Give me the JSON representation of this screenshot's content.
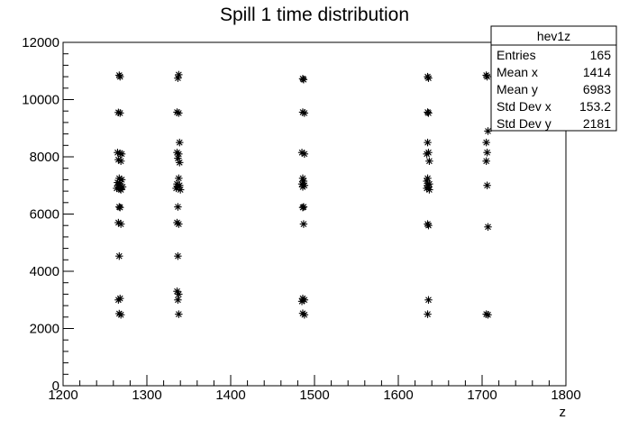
{
  "chart_data": {
    "type": "scatter",
    "title": "Spill 1 time distribution",
    "xlabel": "z",
    "ylabel": "",
    "xlim": [
      1200,
      1800
    ],
    "ylim": [
      0,
      12000
    ],
    "xticks": [
      "1200",
      "1300",
      "1400",
      "1500",
      "1600",
      "1700",
      "1800"
    ],
    "yticks": [
      "0",
      "2000",
      "4000",
      "6000",
      "8000",
      "10000",
      "12000"
    ],
    "marker": "asterisk",
    "stats": {
      "name": "hev1z",
      "rows": [
        {
          "label": "Entries",
          "value": "165"
        },
        {
          "label": "Mean x",
          "value": "1414"
        },
        {
          "label": "Mean y",
          "value": "6983"
        },
        {
          "label": "Std Dev x",
          "value": "153.2"
        },
        {
          "label": "Std Dev y",
          "value": "2181"
        }
      ]
    },
    "points": [
      [
        1267,
        10850
      ],
      [
        1268,
        10800
      ],
      [
        1266,
        9550
      ],
      [
        1268,
        9530
      ],
      [
        1265,
        8150
      ],
      [
        1268,
        8120
      ],
      [
        1270,
        8100
      ],
      [
        1266,
        7900
      ],
      [
        1269,
        7850
      ],
      [
        1267,
        7250
      ],
      [
        1270,
        7200
      ],
      [
        1265,
        7100
      ],
      [
        1268,
        7050
      ],
      [
        1266,
        7000
      ],
      [
        1271,
        6950
      ],
      [
        1264,
        6900
      ],
      [
        1268,
        6880
      ],
      [
        1269,
        6850
      ],
      [
        1267,
        6250
      ],
      [
        1268,
        6230
      ],
      [
        1266,
        5700
      ],
      [
        1269,
        5650
      ],
      [
        1267,
        4530
      ],
      [
        1268,
        3050
      ],
      [
        1266,
        3000
      ],
      [
        1267,
        2520
      ],
      [
        1269,
        2480
      ],
      [
        1338,
        10870
      ],
      [
        1337,
        10750
      ],
      [
        1336,
        9560
      ],
      [
        1338,
        9530
      ],
      [
        1339,
        8500
      ],
      [
        1336,
        8150
      ],
      [
        1338,
        8100
      ],
      [
        1337,
        7950
      ],
      [
        1339,
        7800
      ],
      [
        1338,
        7250
      ],
      [
        1336,
        7050
      ],
      [
        1339,
        7000
      ],
      [
        1337,
        6950
      ],
      [
        1335,
        6900
      ],
      [
        1340,
        6850
      ],
      [
        1337,
        6250
      ],
      [
        1336,
        5700
      ],
      [
        1338,
        5650
      ],
      [
        1337,
        4530
      ],
      [
        1336,
        3300
      ],
      [
        1338,
        3200
      ],
      [
        1337,
        3000
      ],
      [
        1338,
        2500
      ],
      [
        1486,
        10730
      ],
      [
        1487,
        10700
      ],
      [
        1486,
        9560
      ],
      [
        1488,
        9530
      ],
      [
        1485,
        8150
      ],
      [
        1488,
        8100
      ],
      [
        1486,
        7250
      ],
      [
        1487,
        7150
      ],
      [
        1485,
        7050
      ],
      [
        1488,
        7000
      ],
      [
        1486,
        6950
      ],
      [
        1487,
        6250
      ],
      [
        1486,
        6230
      ],
      [
        1487,
        5650
      ],
      [
        1486,
        3050
      ],
      [
        1488,
        3000
      ],
      [
        1485,
        2950
      ],
      [
        1486,
        2530
      ],
      [
        1488,
        2480
      ],
      [
        1635,
        10800
      ],
      [
        1636,
        10750
      ],
      [
        1635,
        9560
      ],
      [
        1636,
        9530
      ],
      [
        1635,
        8500
      ],
      [
        1636,
        8150
      ],
      [
        1634,
        8100
      ],
      [
        1637,
        7850
      ],
      [
        1635,
        7250
      ],
      [
        1634,
        7150
      ],
      [
        1637,
        7050
      ],
      [
        1635,
        7000
      ],
      [
        1636,
        6950
      ],
      [
        1634,
        6900
      ],
      [
        1637,
        6850
      ],
      [
        1635,
        5650
      ],
      [
        1636,
        5600
      ],
      [
        1636,
        3000
      ],
      [
        1635,
        2500
      ],
      [
        1705,
        10850
      ],
      [
        1706,
        10800
      ],
      [
        1707,
        8900
      ],
      [
        1705,
        8500
      ],
      [
        1706,
        8150
      ],
      [
        1705,
        7850
      ],
      [
        1706,
        7000
      ],
      [
        1707,
        5550
      ],
      [
        1705,
        2500
      ],
      [
        1707,
        2480
      ]
    ]
  }
}
